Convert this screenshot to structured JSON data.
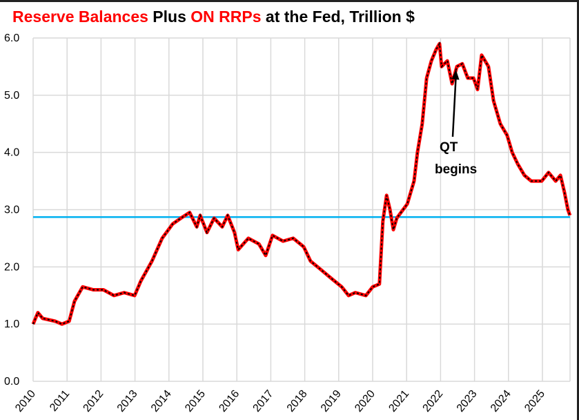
{
  "chart_data": {
    "type": "line",
    "title_parts": [
      {
        "text": "Reserve Balances",
        "color": "#ff0000"
      },
      {
        "text": " Plus ",
        "color": "#000000"
      },
      {
        "text": "ON RRPs",
        "color": "#ff0000"
      },
      {
        "text": " at the Fed, Trillion $",
        "color": "#000000"
      }
    ],
    "xlabel": "",
    "ylabel": "",
    "xlim": [
      2010,
      2025.85
    ],
    "ylim": [
      0,
      6
    ],
    "x_ticks": [
      "2010",
      "2011",
      "2012",
      "2013",
      "2014",
      "2015",
      "2016",
      "2017",
      "2018",
      "2019",
      "2020",
      "2021",
      "2022",
      "2023",
      "2024",
      "2025"
    ],
    "y_ticks": [
      "0.0",
      "1.0",
      "2.0",
      "3.0",
      "4.0",
      "5.0",
      "6.0"
    ],
    "grid": true,
    "series_style": {
      "color": "#ff0000",
      "overlay_dash_color": "#000000"
    },
    "series": [
      {
        "x": [
          2010.0,
          2010.14,
          2010.28,
          2010.65,
          2010.85,
          2011.06,
          2011.22,
          2011.46,
          2011.77,
          2012.07,
          2012.38,
          2012.68,
          2012.99,
          2013.17,
          2013.5,
          2013.8,
          2014.11,
          2014.35,
          2014.61,
          2014.82,
          2014.92,
          2015.12,
          2015.33,
          2015.57,
          2015.73,
          2015.93,
          2016.04,
          2016.34,
          2016.65,
          2016.85,
          2017.05,
          2017.36,
          2017.66,
          2017.97,
          2018.17,
          2018.48,
          2018.78,
          2019.09,
          2019.29,
          2019.49,
          2019.8,
          2020.0,
          2020.2,
          2020.3,
          2020.41,
          2020.51,
          2020.61,
          2020.71,
          2021.02,
          2021.22,
          2021.32,
          2021.46,
          2021.59,
          2021.73,
          2021.87,
          2021.97,
          2022.03,
          2022.2,
          2022.34,
          2022.48,
          2022.64,
          2022.8,
          2022.97,
          2023.09,
          2023.21,
          2023.31,
          2023.41,
          2023.56,
          2023.76,
          2023.96,
          2024.11,
          2024.27,
          2024.47,
          2024.67,
          2024.98,
          2025.18,
          2025.39,
          2025.53,
          2025.65,
          2025.75,
          2025.81
        ],
        "y": [
          1.0,
          1.2,
          1.1,
          1.05,
          1.0,
          1.05,
          1.4,
          1.65,
          1.6,
          1.6,
          1.5,
          1.55,
          1.5,
          1.75,
          2.1,
          2.5,
          2.75,
          2.85,
          2.95,
          2.7,
          2.9,
          2.6,
          2.85,
          2.7,
          2.9,
          2.6,
          2.3,
          2.5,
          2.4,
          2.2,
          2.55,
          2.45,
          2.5,
          2.35,
          2.1,
          1.95,
          1.8,
          1.65,
          1.5,
          1.55,
          1.5,
          1.65,
          1.7,
          2.8,
          3.25,
          3.0,
          2.65,
          2.85,
          3.1,
          3.5,
          4.0,
          4.5,
          5.3,
          5.6,
          5.8,
          5.9,
          5.5,
          5.6,
          5.2,
          5.5,
          5.55,
          5.3,
          5.3,
          5.1,
          5.7,
          5.6,
          5.5,
          4.9,
          4.5,
          4.3,
          4.0,
          3.8,
          3.6,
          3.5,
          3.5,
          3.65,
          3.5,
          3.6,
          3.3,
          3.0,
          2.9
        ]
      }
    ],
    "reference_line": {
      "y": 2.87,
      "color": "#00b0f0"
    },
    "annotations": [
      {
        "text_lines": [
          "QT",
          "begins"
        ],
        "arrow_to": {
          "x": 2022.45,
          "y": 5.45
        }
      }
    ]
  }
}
